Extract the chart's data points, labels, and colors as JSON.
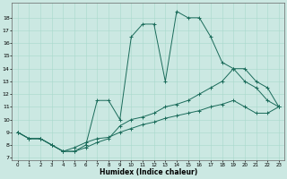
{
  "xlabel": "Humidex (Indice chaleur)",
  "bg_color": "#cbe8e2",
  "line_color": "#1a6b5a",
  "xlim": [
    -0.5,
    23.5
  ],
  "ylim": [
    6.8,
    19.2
  ],
  "yticks": [
    7,
    8,
    9,
    10,
    11,
    12,
    13,
    14,
    15,
    16,
    17,
    18
  ],
  "xticks": [
    0,
    1,
    2,
    3,
    4,
    5,
    6,
    7,
    8,
    9,
    10,
    11,
    12,
    13,
    14,
    15,
    16,
    17,
    18,
    19,
    20,
    21,
    22,
    23
  ],
  "line1_x": [
    0,
    1,
    2,
    3,
    4,
    5,
    6,
    7,
    8,
    9,
    10,
    11,
    12,
    13,
    14,
    15,
    16,
    17,
    18,
    19,
    20,
    21,
    22,
    23
  ],
  "line1_y": [
    9.0,
    8.5,
    8.5,
    8.0,
    7.5,
    7.8,
    8.2,
    8.5,
    8.6,
    9.0,
    9.3,
    9.6,
    9.8,
    10.1,
    10.3,
    10.5,
    10.7,
    11.0,
    11.2,
    11.5,
    11.0,
    10.5,
    10.5,
    11.0
  ],
  "line2_x": [
    0,
    1,
    2,
    3,
    4,
    5,
    6,
    7,
    8,
    9,
    10,
    11,
    12,
    13,
    14,
    15,
    16,
    17,
    18,
    19,
    20,
    21,
    22,
    23
  ],
  "line2_y": [
    9.0,
    8.5,
    8.5,
    8.0,
    7.5,
    7.5,
    7.8,
    8.2,
    8.5,
    9.5,
    10.0,
    10.2,
    10.5,
    11.0,
    11.2,
    11.5,
    12.0,
    12.5,
    13.0,
    14.0,
    14.0,
    13.0,
    12.5,
    11.0
  ],
  "line3_x": [
    0,
    1,
    2,
    3,
    4,
    5,
    6,
    7,
    8,
    9,
    10,
    11,
    12,
    13,
    14,
    15,
    16,
    17,
    18,
    19,
    20,
    21,
    22,
    23
  ],
  "line3_y": [
    9.0,
    8.5,
    8.5,
    8.0,
    7.5,
    7.5,
    8.0,
    11.5,
    11.5,
    10.0,
    16.5,
    17.5,
    17.5,
    13.0,
    18.5,
    18.0,
    18.0,
    16.5,
    14.5,
    14.0,
    13.0,
    12.5,
    11.5,
    11.0
  ],
  "grid_color": "#a8d8cc",
  "marker": "+"
}
